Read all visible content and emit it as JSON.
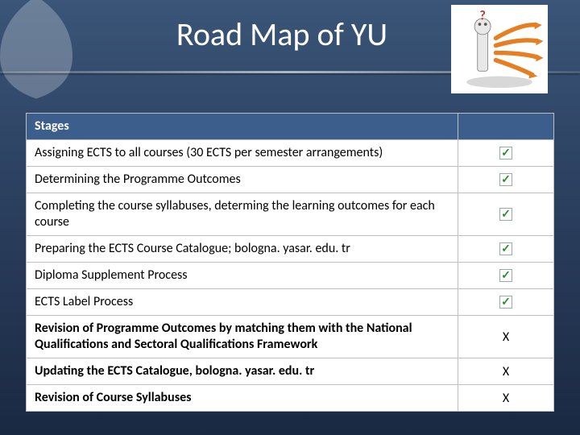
{
  "title": "Road Map of YU",
  "table": {
    "header": "Stages",
    "rows": [
      {
        "text": "Assigning ECTS to all courses (30 ECTS per semester arrangements)",
        "status": "check",
        "bold": false
      },
      {
        "text": "Determining the Programme Outcomes",
        "status": "check",
        "bold": false
      },
      {
        "text": "Completing the course syllabuses, determing the learning outcomes for each course",
        "status": "check",
        "bold": false
      },
      {
        "text": "Preparing the ECTS Course Catalogue; bologna. yasar. edu. tr",
        "status": "check",
        "bold": false
      },
      {
        "text": "Diploma Supplement Process",
        "status": "check",
        "bold": false
      },
      {
        "text": "ECTS Label Process",
        "status": "check",
        "bold": false
      },
      {
        "text": "Revision of Programme Outcomes by matching them with the National Qualifications and Sectoral Qualifications Framework",
        "status": "x",
        "bold": true
      },
      {
        "text": "Updating the ECTS Catalogue, bologna. yasar. edu. tr",
        "status": "x",
        "bold": true
      },
      {
        "text": "Revision of Course Syllabuses",
        "status": "x",
        "bold": true
      }
    ]
  },
  "colors": {
    "header_bg": "#3b5e8c",
    "check_green": "#2e8b2e",
    "border": "#bfbfbf"
  }
}
